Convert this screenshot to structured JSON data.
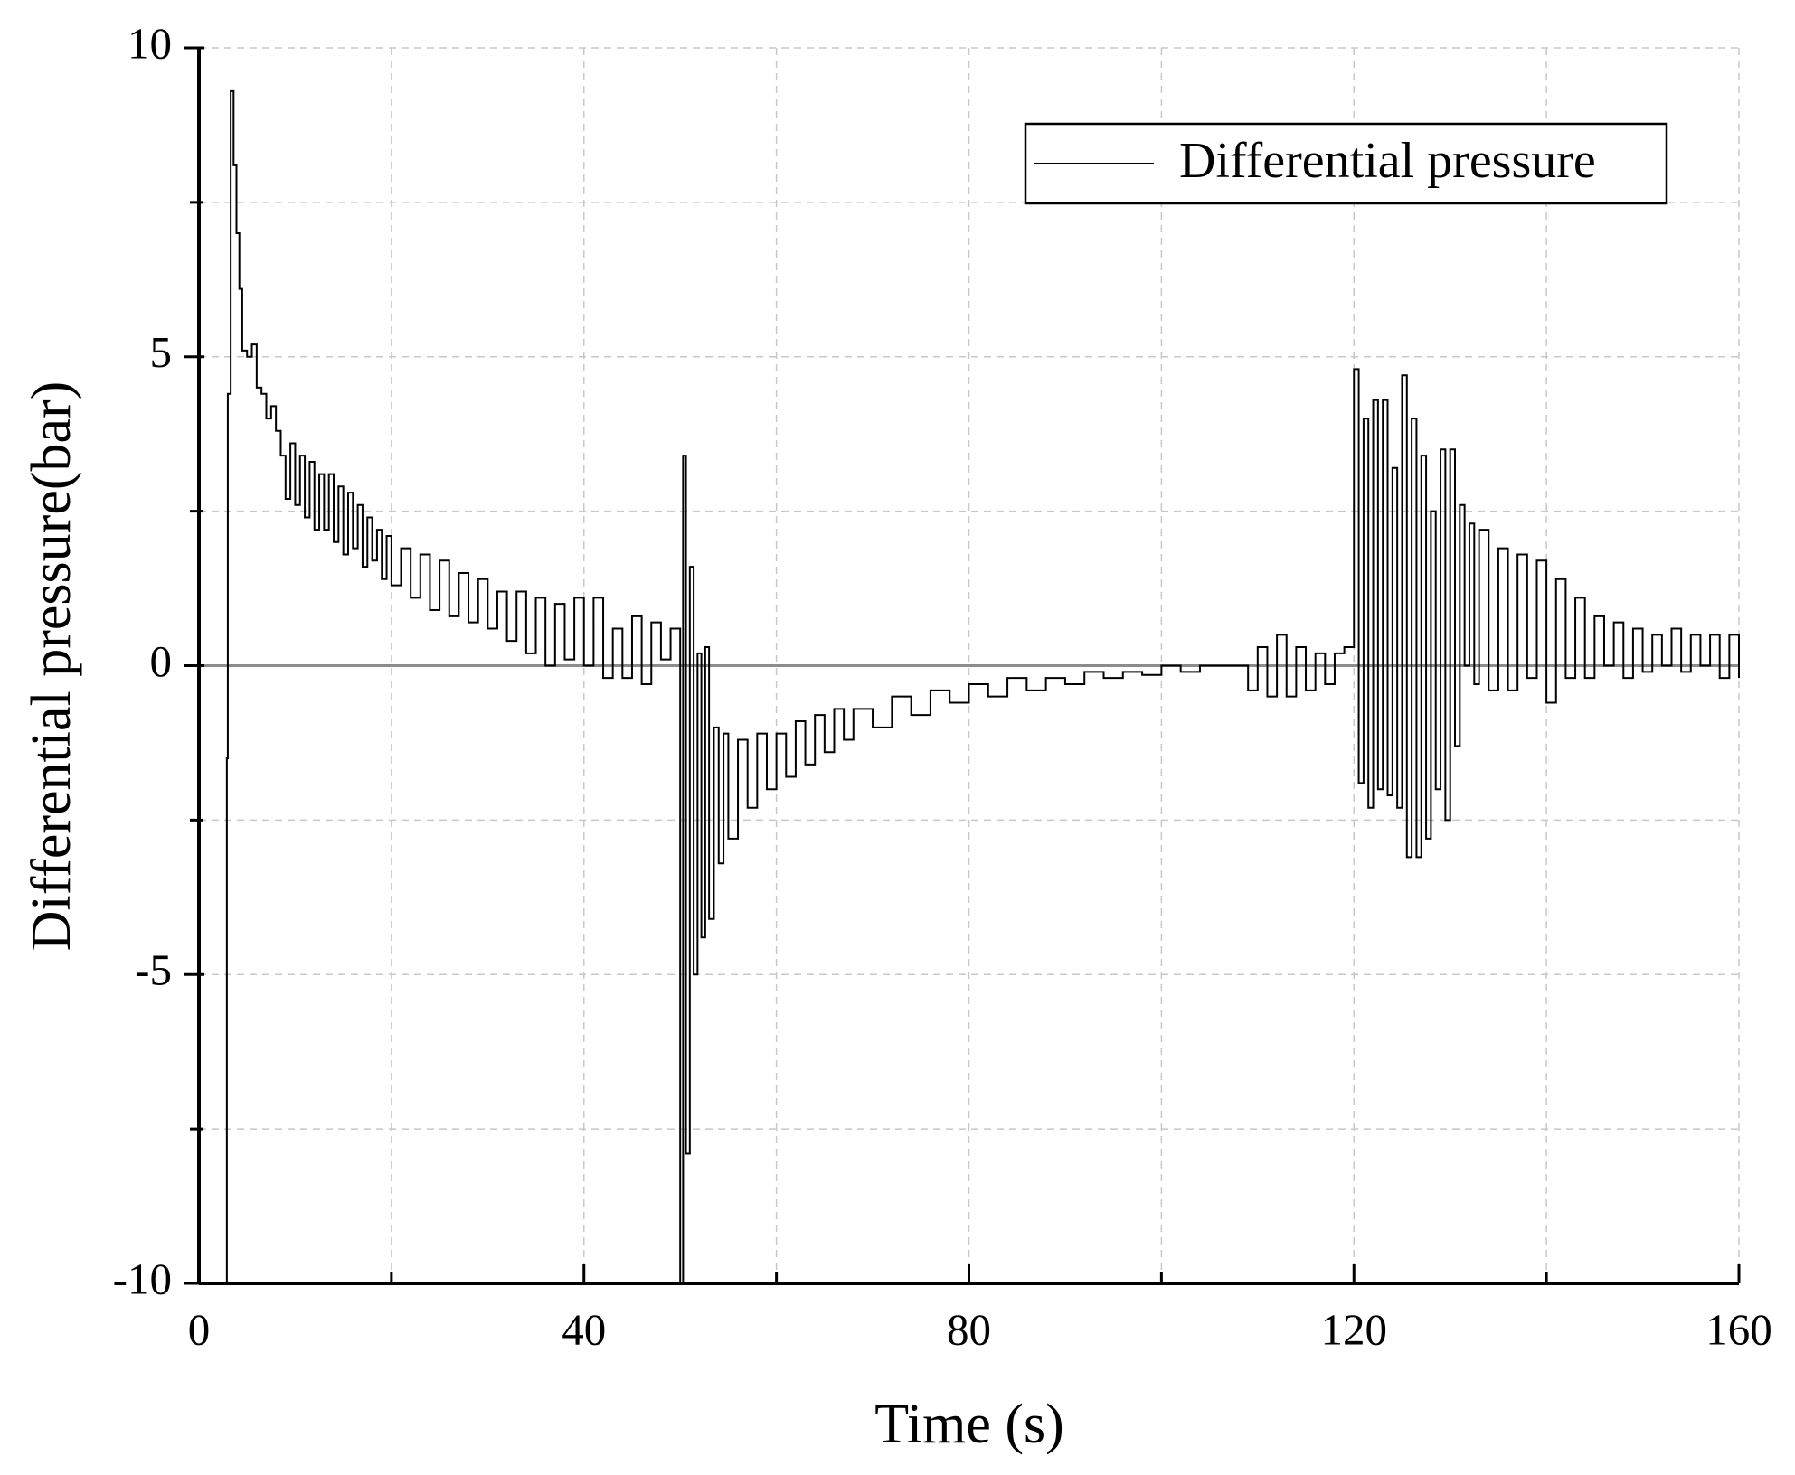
{
  "chart_data": {
    "type": "line",
    "step": true,
    "x_label": "Time (s)",
    "y_label": "Differential pressure(bar)",
    "xlim": [
      0,
      160
    ],
    "xticks": [
      0,
      40,
      80,
      120,
      160
    ],
    "xticks_minor": [
      20,
      60,
      100,
      140
    ],
    "ylim": [
      -10,
      10
    ],
    "yticks": [
      -10,
      -5,
      0,
      5,
      10
    ],
    "yticks_minor": [
      -7.5,
      -2.5,
      2.5,
      7.5
    ],
    "grid": true,
    "zero_line": true,
    "legend": "upper right",
    "x": [
      2.8,
      2.9,
      3.0,
      3.3,
      3.6,
      3.9,
      4.2,
      4.5,
      5,
      5.5,
      6,
      6.5,
      7,
      7.5,
      8,
      8.5,
      9,
      9.5,
      10,
      10.5,
      11,
      11.5,
      12,
      12.5,
      13,
      13.5,
      14,
      14.5,
      15,
      15.5,
      16,
      16.5,
      17,
      17.5,
      18,
      18.5,
      19,
      19.5,
      20,
      21,
      22,
      23,
      24,
      25,
      26,
      27,
      28,
      29,
      30,
      31,
      32,
      33,
      34,
      35,
      36,
      37,
      38,
      39,
      40,
      41,
      42,
      43,
      44,
      45,
      46,
      47,
      48,
      49,
      50,
      50.3,
      50.6,
      51,
      51.4,
      51.8,
      52.2,
      52.6,
      53,
      53.5,
      54,
      54.5,
      55,
      56,
      57,
      58,
      59,
      60,
      61,
      62,
      63,
      64,
      65,
      66,
      67,
      68,
      70,
      72,
      74,
      76,
      78,
      80,
      82,
      84,
      86,
      88,
      90,
      92,
      94,
      96,
      98,
      100,
      102,
      104,
      106,
      108,
      109,
      110,
      111,
      112,
      113,
      114,
      115,
      116,
      117,
      118,
      119,
      120,
      120.5,
      121,
      121.5,
      122,
      122.5,
      123,
      123.5,
      124,
      124.5,
      125,
      125.5,
      126,
      126.5,
      127,
      127.5,
      128,
      128.5,
      129,
      129.5,
      130,
      130.5,
      131,
      131.5,
      132,
      132.5,
      133,
      134,
      135,
      136,
      137,
      138,
      139,
      140,
      141,
      142,
      143,
      144,
      145,
      146,
      147,
      148,
      149,
      150,
      151,
      152,
      153,
      154,
      155,
      156,
      157,
      158,
      159,
      160
    ],
    "series": [
      {
        "name": "Differential pressure",
        "color": "#000000",
        "values": [
          -10,
          -1.5,
          4.4,
          9.3,
          8.1,
          7.0,
          6.1,
          5.1,
          5.0,
          5.2,
          4.5,
          4.4,
          4.0,
          4.2,
          3.8,
          3.4,
          2.7,
          3.6,
          2.6,
          3.4,
          2.4,
          3.3,
          2.2,
          3.1,
          2.2,
          3.1,
          2.0,
          2.9,
          1.8,
          2.8,
          1.9,
          2.6,
          1.6,
          2.4,
          1.7,
          2.2,
          1.4,
          2.1,
          1.3,
          1.9,
          1.1,
          1.8,
          0.9,
          1.7,
          0.8,
          1.5,
          0.7,
          1.4,
          0.6,
          1.2,
          0.4,
          1.2,
          0.2,
          1.1,
          0.0,
          1.0,
          0.1,
          1.1,
          0.0,
          1.1,
          -0.2,
          0.6,
          -0.2,
          0.8,
          -0.3,
          0.7,
          0.1,
          0.6,
          -10,
          3.4,
          -7.9,
          1.6,
          -5.0,
          0.2,
          -4.4,
          0.3,
          -4.1,
          -1.0,
          -3.2,
          -1.1,
          -2.8,
          -1.2,
          -2.3,
          -1.1,
          -2.0,
          -1.1,
          -1.8,
          -0.9,
          -1.6,
          -0.8,
          -1.4,
          -0.7,
          -1.2,
          -0.7,
          -1.0,
          -0.5,
          -0.8,
          -0.4,
          -0.6,
          -0.3,
          -0.5,
          -0.2,
          -0.4,
          -0.2,
          -0.3,
          -0.1,
          -0.2,
          -0.1,
          -0.15,
          0,
          -0.1,
          0,
          0,
          0,
          -0.4,
          0.3,
          -0.5,
          0.5,
          -0.5,
          0.3,
          -0.4,
          0.2,
          -0.3,
          0.2,
          0.3,
          4.8,
          -1.9,
          4.0,
          -2.3,
          4.3,
          -2.0,
          4.3,
          -2.1,
          3.2,
          -2.3,
          4.7,
          -3.1,
          4.0,
          -3.1,
          3.4,
          -2.8,
          2.5,
          -2.0,
          3.5,
          -2.5,
          3.5,
          -1.3,
          2.6,
          0.0,
          2.3,
          -0.3,
          2.2,
          -0.4,
          1.9,
          -0.4,
          1.8,
          -0.2,
          1.7,
          -0.6,
          1.4,
          -0.2,
          1.1,
          -0.2,
          0.8,
          0.0,
          0.7,
          -0.2,
          0.6,
          -0.1,
          0.5,
          0.0,
          0.6,
          -0.1,
          0.5,
          0.0,
          0.5,
          -0.2,
          0.5,
          -0.2
        ]
      }
    ]
  }
}
